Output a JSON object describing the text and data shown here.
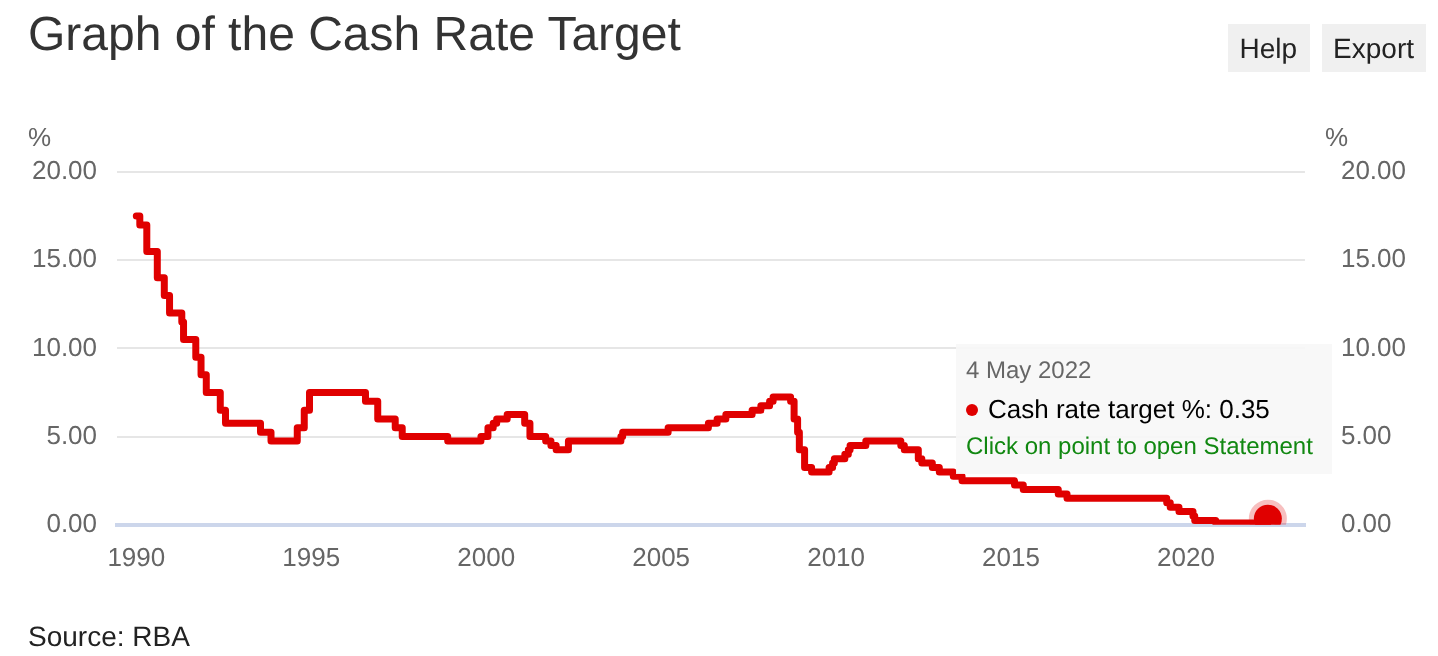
{
  "chart_data": {
    "type": "step",
    "title": "Graph of the Cash Rate Target",
    "ylabel": "%",
    "y2label": "%",
    "x": [
      1990.0,
      1990.1,
      1990.3,
      1990.6,
      1990.8,
      1990.95,
      1991.3,
      1991.35,
      1991.7,
      1991.85,
      1992.0,
      1992.4,
      1992.55,
      1993.55,
      1993.85,
      1994.6,
      1994.8,
      1994.95,
      1996.55,
      1996.9,
      1997.4,
      1997.6,
      1998.9,
      1999.85,
      2000.05,
      2000.2,
      2000.3,
      2000.6,
      2001.1,
      2001.25,
      2001.7,
      2001.85,
      2002.0,
      2002.35,
      2003.85,
      2003.9,
      2005.2,
      2006.35,
      2006.6,
      2006.85,
      2007.6,
      2007.85,
      2008.1,
      2008.2,
      2008.7,
      2008.8,
      2008.9,
      2008.95,
      2009.1,
      2009.3,
      2009.8,
      2009.9,
      2009.95,
      2010.25,
      2010.35,
      2010.4,
      2010.85,
      2011.85,
      2011.95,
      2012.35,
      2012.45,
      2012.75,
      2012.95,
      2013.35,
      2013.6,
      2015.1,
      2015.35,
      2016.35,
      2016.6,
      2019.45,
      2019.55,
      2019.8,
      2020.2,
      2020.25,
      2020.85,
      2022.34
    ],
    "series": [
      {
        "type": "scatter",
        "marker": "circle",
        "color": "#e00000",
        "x": [
          2022.34
        ],
        "values": [
          0.35
        ]
      },
      {
        "color": "#e00000",
        "values": [
          17.5,
          17.0,
          15.5,
          14.0,
          13.0,
          12.0,
          11.5,
          10.5,
          9.5,
          8.5,
          7.5,
          6.5,
          5.75,
          5.25,
          4.75,
          5.5,
          6.5,
          7.5,
          7.0,
          6.0,
          5.5,
          5.0,
          4.75,
          5.0,
          5.5,
          5.75,
          6.0,
          6.25,
          5.75,
          5.0,
          4.75,
          4.5,
          4.25,
          4.75,
          5.0,
          5.25,
          5.5,
          5.75,
          6.0,
          6.25,
          6.5,
          6.75,
          7.0,
          7.25,
          7.0,
          6.0,
          5.25,
          4.25,
          3.25,
          3.0,
          3.25,
          3.5,
          3.75,
          4.0,
          4.25,
          4.5,
          4.75,
          4.5,
          4.25,
          3.75,
          3.5,
          3.25,
          3.0,
          2.75,
          2.5,
          2.25,
          2.0,
          1.75,
          1.5,
          1.25,
          1.0,
          0.75,
          0.5,
          0.25,
          0.1,
          0.35
        ]
      }
    ],
    "xlim": [
      1989.45,
      2023.4
    ],
    "xticks": [
      1990,
      1995,
      2000,
      2005,
      2010,
      2015,
      2020
    ],
    "ylim": [
      0,
      20
    ],
    "yticks": [
      {
        "value": 0,
        "label": "0.00"
      },
      {
        "value": 5,
        "label": "5.00"
      },
      {
        "value": 10,
        "label": "10.00"
      },
      {
        "value": 15,
        "label": "15.00"
      },
      {
        "value": 20,
        "label": "20.00"
      }
    ],
    "y2lim": [
      0,
      20
    ],
    "y2ticks": [
      {
        "value": 0,
        "label": "0.00"
      },
      {
        "value": 5,
        "label": "5.00"
      },
      {
        "value": 10,
        "label": "10.00"
      },
      {
        "value": 15,
        "label": "15.00"
      },
      {
        "value": 20,
        "label": "20.00"
      }
    ],
    "grid": "y",
    "legend": false,
    "line_style": "solid",
    "annotations": [
      "4 May 2022",
      "Cash rate target %: 0.35",
      "Click on point to open Statement",
      "Help",
      "Export",
      "Source: RBA"
    ]
  }
}
